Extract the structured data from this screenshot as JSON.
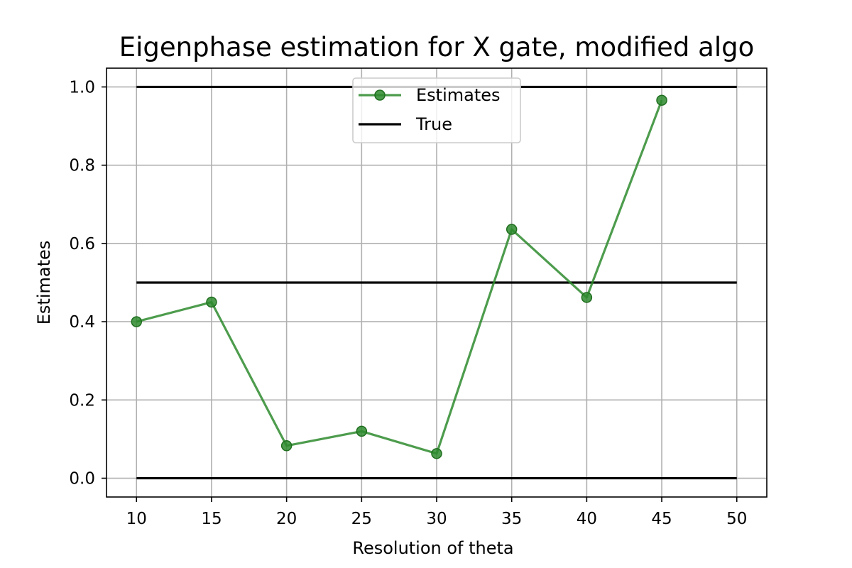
{
  "chart_data": {
    "type": "line",
    "title": "Eigenphase estimation for X gate, modified algo",
    "xlabel": "Resolution of theta",
    "ylabel": "Estimates",
    "xlim": [
      8,
      52
    ],
    "ylim": [
      -0.048,
      1.048
    ],
    "xticks": [
      10,
      15,
      20,
      25,
      30,
      35,
      40,
      45,
      50
    ],
    "yticks": [
      0.0,
      0.2,
      0.4,
      0.6,
      0.8,
      1.0
    ],
    "xtick_labels": [
      "10",
      "15",
      "20",
      "25",
      "30",
      "35",
      "40",
      "45",
      "50"
    ],
    "ytick_labels": [
      "0.0",
      "0.2",
      "0.4",
      "0.6",
      "0.8",
      "1.0"
    ],
    "grid": true,
    "legend_position": "top-center",
    "series": [
      {
        "name": "Estimates",
        "kind": "line-marker",
        "color": "#2e8b2e",
        "x": [
          10,
          15,
          20,
          25,
          30,
          35,
          40,
          45
        ],
        "y": [
          0.4,
          0.45,
          0.083,
          0.12,
          0.063,
          0.636,
          0.462,
          0.966
        ]
      },
      {
        "name": "True",
        "kind": "hlines",
        "color": "#000000",
        "x_range": [
          10,
          50
        ],
        "y": [
          0.0,
          0.5,
          1.0
        ]
      }
    ]
  }
}
